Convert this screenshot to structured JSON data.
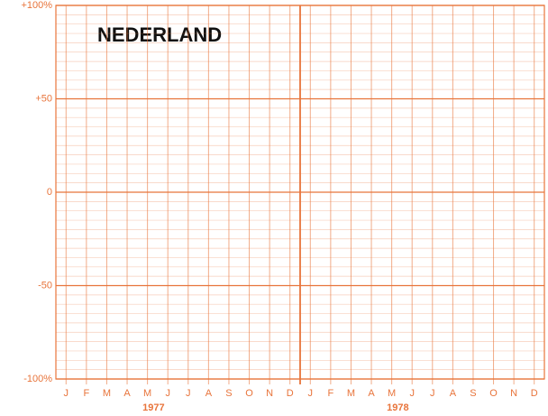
{
  "chart_data": {
    "type": "line",
    "title": "NEDERLAND",
    "categories": [
      "J",
      "F",
      "M",
      "A",
      "M",
      "J",
      "J",
      "A",
      "S",
      "O",
      "N",
      "D",
      "J",
      "F",
      "M",
      "A",
      "M",
      "J",
      "J",
      "A",
      "S",
      "O",
      "N",
      "D"
    ],
    "years": [
      "1977",
      "1978"
    ],
    "ylim": [
      -100,
      100
    ],
    "yticks": [
      {
        "value": 100,
        "label": "+100%"
      },
      {
        "value": 50,
        "label": "+50"
      },
      0,
      -50,
      {
        "value": -100,
        "label": "-100%"
      }
    ],
    "grid": true,
    "color": "#e8743b"
  }
}
